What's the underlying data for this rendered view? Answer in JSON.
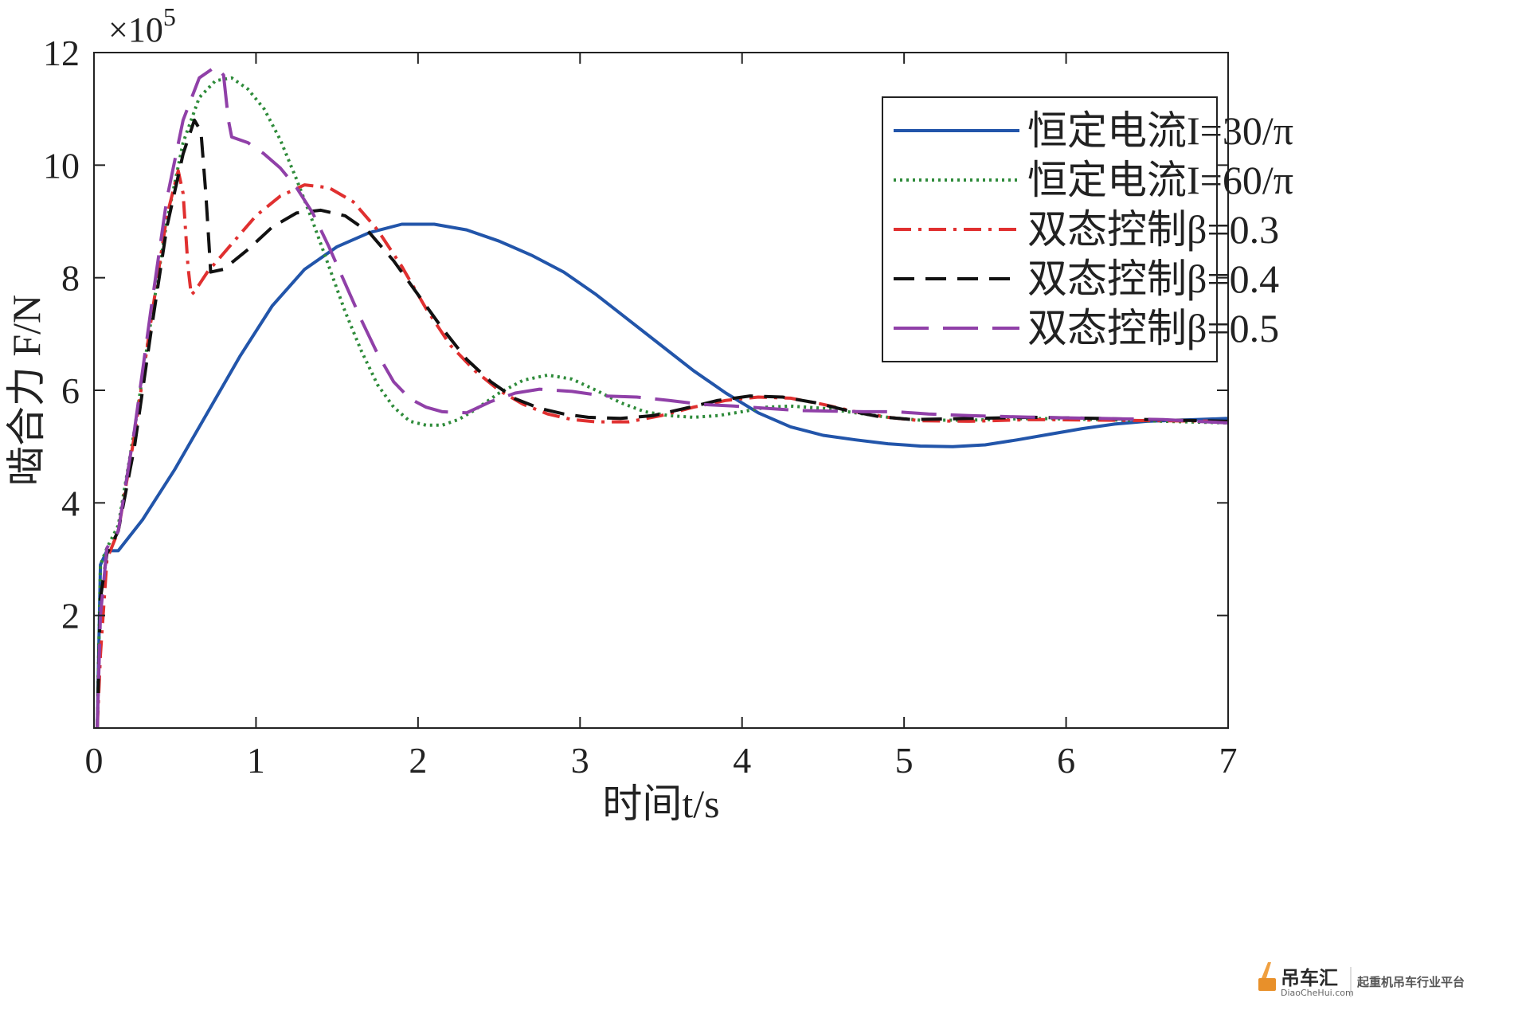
{
  "chart_data": {
    "type": "line",
    "xlabel": "时间t/s",
    "ylabel": "啮合力 F/N",
    "y_multiplier": "×10",
    "y_multiplier_exp": "5",
    "xlim": [
      0,
      7
    ],
    "ylim": [
      0,
      12
    ],
    "x_ticks": [
      0,
      1,
      2,
      3,
      4,
      5,
      6,
      7
    ],
    "x_tick_labels": [
      "0",
      "1",
      "2",
      "3",
      "4",
      "5",
      "6",
      "7"
    ],
    "y_ticks": [
      2,
      4,
      6,
      8,
      10,
      12
    ],
    "y_tick_labels": [
      "2",
      "4",
      "6",
      "8",
      "10",
      "12"
    ],
    "grid": false,
    "legend_position": "top-right",
    "series": [
      {
        "name": "恒定电流I=30/π",
        "color": "#2255aa",
        "dash": "solid",
        "points": [
          [
            0.02,
            0
          ],
          [
            0.04,
            2.9
          ],
          [
            0.08,
            3.15
          ],
          [
            0.15,
            3.15
          ],
          [
            0.3,
            3.7
          ],
          [
            0.5,
            4.6
          ],
          [
            0.7,
            5.6
          ],
          [
            0.9,
            6.6
          ],
          [
            1.1,
            7.5
          ],
          [
            1.3,
            8.15
          ],
          [
            1.5,
            8.55
          ],
          [
            1.7,
            8.8
          ],
          [
            1.9,
            8.95
          ],
          [
            2.1,
            8.95
          ],
          [
            2.3,
            8.85
          ],
          [
            2.5,
            8.65
          ],
          [
            2.7,
            8.4
          ],
          [
            2.9,
            8.1
          ],
          [
            3.1,
            7.7
          ],
          [
            3.3,
            7.25
          ],
          [
            3.5,
            6.8
          ],
          [
            3.7,
            6.35
          ],
          [
            3.9,
            5.95
          ],
          [
            4.1,
            5.6
          ],
          [
            4.3,
            5.35
          ],
          [
            4.5,
            5.2
          ],
          [
            4.7,
            5.12
          ],
          [
            4.9,
            5.05
          ],
          [
            5.1,
            5.01
          ],
          [
            5.3,
            5.0
          ],
          [
            5.5,
            5.03
          ],
          [
            5.7,
            5.12
          ],
          [
            5.9,
            5.22
          ],
          [
            6.1,
            5.32
          ],
          [
            6.3,
            5.4
          ],
          [
            6.5,
            5.45
          ],
          [
            6.7,
            5.47
          ],
          [
            7.0,
            5.5
          ]
        ]
      },
      {
        "name": "恒定电流I=60/π",
        "color": "#2e8b3a",
        "dash": "dotted",
        "points": [
          [
            0.02,
            0
          ],
          [
            0.04,
            2.9
          ],
          [
            0.08,
            3.2
          ],
          [
            0.15,
            3.6
          ],
          [
            0.25,
            5.3
          ],
          [
            0.35,
            7.2
          ],
          [
            0.45,
            9.0
          ],
          [
            0.55,
            10.4
          ],
          [
            0.65,
            11.2
          ],
          [
            0.75,
            11.5
          ],
          [
            0.85,
            11.55
          ],
          [
            0.95,
            11.35
          ],
          [
            1.05,
            11.0
          ],
          [
            1.15,
            10.45
          ],
          [
            1.25,
            9.75
          ],
          [
            1.35,
            9.0
          ],
          [
            1.45,
            8.2
          ],
          [
            1.55,
            7.4
          ],
          [
            1.65,
            6.7
          ],
          [
            1.75,
            6.1
          ],
          [
            1.85,
            5.7
          ],
          [
            1.95,
            5.45
          ],
          [
            2.05,
            5.38
          ],
          [
            2.15,
            5.38
          ],
          [
            2.25,
            5.48
          ],
          [
            2.35,
            5.65
          ],
          [
            2.5,
            5.95
          ],
          [
            2.65,
            6.18
          ],
          [
            2.8,
            6.27
          ],
          [
            2.95,
            6.2
          ],
          [
            3.1,
            6.0
          ],
          [
            3.25,
            5.78
          ],
          [
            3.4,
            5.62
          ],
          [
            3.55,
            5.55
          ],
          [
            3.7,
            5.52
          ],
          [
            3.85,
            5.55
          ],
          [
            4.0,
            5.62
          ],
          [
            4.15,
            5.7
          ],
          [
            4.3,
            5.72
          ],
          [
            4.5,
            5.68
          ],
          [
            4.7,
            5.6
          ],
          [
            4.9,
            5.52
          ],
          [
            5.1,
            5.47
          ],
          [
            5.4,
            5.47
          ],
          [
            5.8,
            5.5
          ],
          [
            6.2,
            5.48
          ],
          [
            6.6,
            5.45
          ],
          [
            7.0,
            5.42
          ]
        ]
      },
      {
        "name": "双态控制β=0.3",
        "color": "#e03030",
        "dash": "dashdot",
        "points": [
          [
            0.02,
            0
          ],
          [
            0.04,
            1.3
          ],
          [
            0.08,
            3.0
          ],
          [
            0.15,
            3.5
          ],
          [
            0.25,
            5.2
          ],
          [
            0.35,
            7.2
          ],
          [
            0.45,
            9.1
          ],
          [
            0.52,
            9.9
          ],
          [
            0.55,
            9.5
          ],
          [
            0.58,
            8.2
          ],
          [
            0.6,
            7.7
          ],
          [
            0.62,
            7.75
          ],
          [
            0.7,
            8.1
          ],
          [
            0.85,
            8.6
          ],
          [
            1.0,
            9.1
          ],
          [
            1.15,
            9.45
          ],
          [
            1.3,
            9.65
          ],
          [
            1.45,
            9.6
          ],
          [
            1.6,
            9.35
          ],
          [
            1.75,
            8.85
          ],
          [
            1.9,
            8.2
          ],
          [
            2.05,
            7.45
          ],
          [
            2.2,
            6.8
          ],
          [
            2.35,
            6.35
          ],
          [
            2.5,
            6.0
          ],
          [
            2.65,
            5.75
          ],
          [
            2.8,
            5.58
          ],
          [
            2.95,
            5.48
          ],
          [
            3.1,
            5.44
          ],
          [
            3.3,
            5.44
          ],
          [
            3.5,
            5.55
          ],
          [
            3.7,
            5.7
          ],
          [
            3.9,
            5.82
          ],
          [
            4.1,
            5.88
          ],
          [
            4.3,
            5.86
          ],
          [
            4.5,
            5.75
          ],
          [
            4.7,
            5.62
          ],
          [
            4.9,
            5.52
          ],
          [
            5.1,
            5.46
          ],
          [
            5.4,
            5.45
          ],
          [
            5.8,
            5.48
          ],
          [
            6.2,
            5.47
          ],
          [
            7.0,
            5.45
          ]
        ]
      },
      {
        "name": "双态控制β=0.4",
        "color": "#111111",
        "dash": "dashed",
        "points": [
          [
            0.02,
            0
          ],
          [
            0.04,
            2.3
          ],
          [
            0.08,
            3.1
          ],
          [
            0.15,
            3.5
          ],
          [
            0.25,
            5.0
          ],
          [
            0.35,
            7.0
          ],
          [
            0.45,
            8.9
          ],
          [
            0.55,
            10.2
          ],
          [
            0.62,
            10.8
          ],
          [
            0.66,
            10.6
          ],
          [
            0.69,
            9.5
          ],
          [
            0.71,
            8.6
          ],
          [
            0.72,
            8.1
          ],
          [
            0.8,
            8.15
          ],
          [
            0.95,
            8.5
          ],
          [
            1.1,
            8.9
          ],
          [
            1.25,
            9.15
          ],
          [
            1.4,
            9.2
          ],
          [
            1.55,
            9.1
          ],
          [
            1.7,
            8.8
          ],
          [
            1.85,
            8.3
          ],
          [
            2.0,
            7.7
          ],
          [
            2.15,
            7.1
          ],
          [
            2.3,
            6.55
          ],
          [
            2.45,
            6.15
          ],
          [
            2.6,
            5.85
          ],
          [
            2.75,
            5.68
          ],
          [
            2.9,
            5.58
          ],
          [
            3.05,
            5.52
          ],
          [
            3.25,
            5.5
          ],
          [
            3.45,
            5.55
          ],
          [
            3.65,
            5.68
          ],
          [
            3.85,
            5.82
          ],
          [
            4.05,
            5.9
          ],
          [
            4.25,
            5.88
          ],
          [
            4.45,
            5.78
          ],
          [
            4.65,
            5.64
          ],
          [
            4.85,
            5.53
          ],
          [
            5.05,
            5.48
          ],
          [
            5.4,
            5.5
          ],
          [
            5.8,
            5.52
          ],
          [
            6.2,
            5.5
          ],
          [
            7.0,
            5.45
          ]
        ]
      },
      {
        "name": "双态控制β=0.5",
        "color": "#9040a8",
        "dash": "longdash",
        "points": [
          [
            0.02,
            0
          ],
          [
            0.04,
            2.0
          ],
          [
            0.08,
            3.2
          ],
          [
            0.15,
            3.5
          ],
          [
            0.25,
            5.3
          ],
          [
            0.35,
            7.4
          ],
          [
            0.45,
            9.4
          ],
          [
            0.55,
            10.8
          ],
          [
            0.65,
            11.55
          ],
          [
            0.75,
            11.75
          ],
          [
            0.8,
            11.6
          ],
          [
            0.83,
            10.8
          ],
          [
            0.85,
            10.5
          ],
          [
            0.95,
            10.4
          ],
          [
            1.05,
            10.2
          ],
          [
            1.15,
            9.95
          ],
          [
            1.25,
            9.6
          ],
          [
            1.35,
            9.15
          ],
          [
            1.45,
            8.55
          ],
          [
            1.55,
            7.9
          ],
          [
            1.65,
            7.25
          ],
          [
            1.75,
            6.65
          ],
          [
            1.85,
            6.15
          ],
          [
            1.95,
            5.85
          ],
          [
            2.05,
            5.7
          ],
          [
            2.15,
            5.62
          ],
          [
            2.3,
            5.6
          ],
          [
            2.45,
            5.8
          ],
          [
            2.6,
            5.95
          ],
          [
            2.75,
            6.02
          ],
          [
            2.95,
            5.98
          ],
          [
            3.15,
            5.9
          ],
          [
            3.35,
            5.88
          ],
          [
            3.55,
            5.82
          ],
          [
            3.75,
            5.75
          ],
          [
            3.95,
            5.72
          ],
          [
            4.15,
            5.68
          ],
          [
            4.35,
            5.64
          ],
          [
            4.55,
            5.63
          ],
          [
            4.75,
            5.62
          ],
          [
            4.95,
            5.62
          ],
          [
            5.15,
            5.58
          ],
          [
            5.4,
            5.55
          ],
          [
            5.8,
            5.52
          ],
          [
            6.2,
            5.5
          ],
          [
            6.6,
            5.48
          ],
          [
            7.0,
            5.42
          ]
        ]
      }
    ]
  },
  "watermark": {
    "brand": "吊车汇",
    "domain": "DiaoCheHui.com",
    "slogan": "起重机吊车行业平台"
  }
}
